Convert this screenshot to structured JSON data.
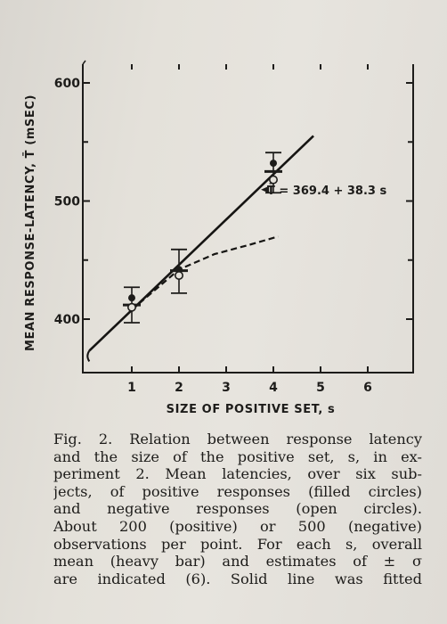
{
  "chart_data": {
    "type": "line",
    "xlabel": "SIZE OF POSITIVE SET, s",
    "ylabel": "MEAN RESPONSE-LATENCY, T̄ (mSEC)",
    "xticks": [
      "1",
      "2",
      "3",
      "4",
      "5",
      "6"
    ],
    "yticks": [
      "400",
      "500",
      "600"
    ],
    "xlim": [
      0.1,
      6.7
    ],
    "ylim": [
      355,
      620
    ],
    "annotation": "T̄ = 369.4 + 38.3 s",
    "fit_line": {
      "intercept": 369.4,
      "slope": 38.3,
      "x_range": [
        0.1,
        4.85
      ]
    },
    "dashed_line": {
      "x": [
        1,
        2,
        2.75,
        3.5,
        4.1
      ],
      "y": [
        408,
        442,
        455,
        463,
        470
      ]
    },
    "series": [
      {
        "marker": "filled-circle",
        "x": [
          1,
          2,
          4
        ],
        "y": [
          418,
          442,
          532
        ]
      },
      {
        "marker": "open-circle",
        "x": [
          1,
          2,
          4
        ],
        "y": [
          410,
          437,
          518
        ]
      }
    ],
    "error_bars": [
      {
        "x": 1,
        "mean": 412,
        "low": 397,
        "high": 427
      },
      {
        "x": 2,
        "mean": 441,
        "low": 422,
        "high": 459
      },
      {
        "x": 4,
        "mean": 525,
        "low": 507,
        "high": 541
      }
    ]
  },
  "caption": {
    "lines": [
      "Fig. 2. Relation between response latency",
      "and the size of the positive set, s, in ex-",
      "periment 2. Mean latencies, over six sub-",
      "jects, of positive responses (filled circles)",
      "and negative responses (open circles).",
      "About 200 (positive) or 500 (negative)",
      "observations per point. For each s, overall",
      "mean (heavy bar) and estimates of ± σ",
      "are indicated (6). Solid line was fitted"
    ]
  }
}
